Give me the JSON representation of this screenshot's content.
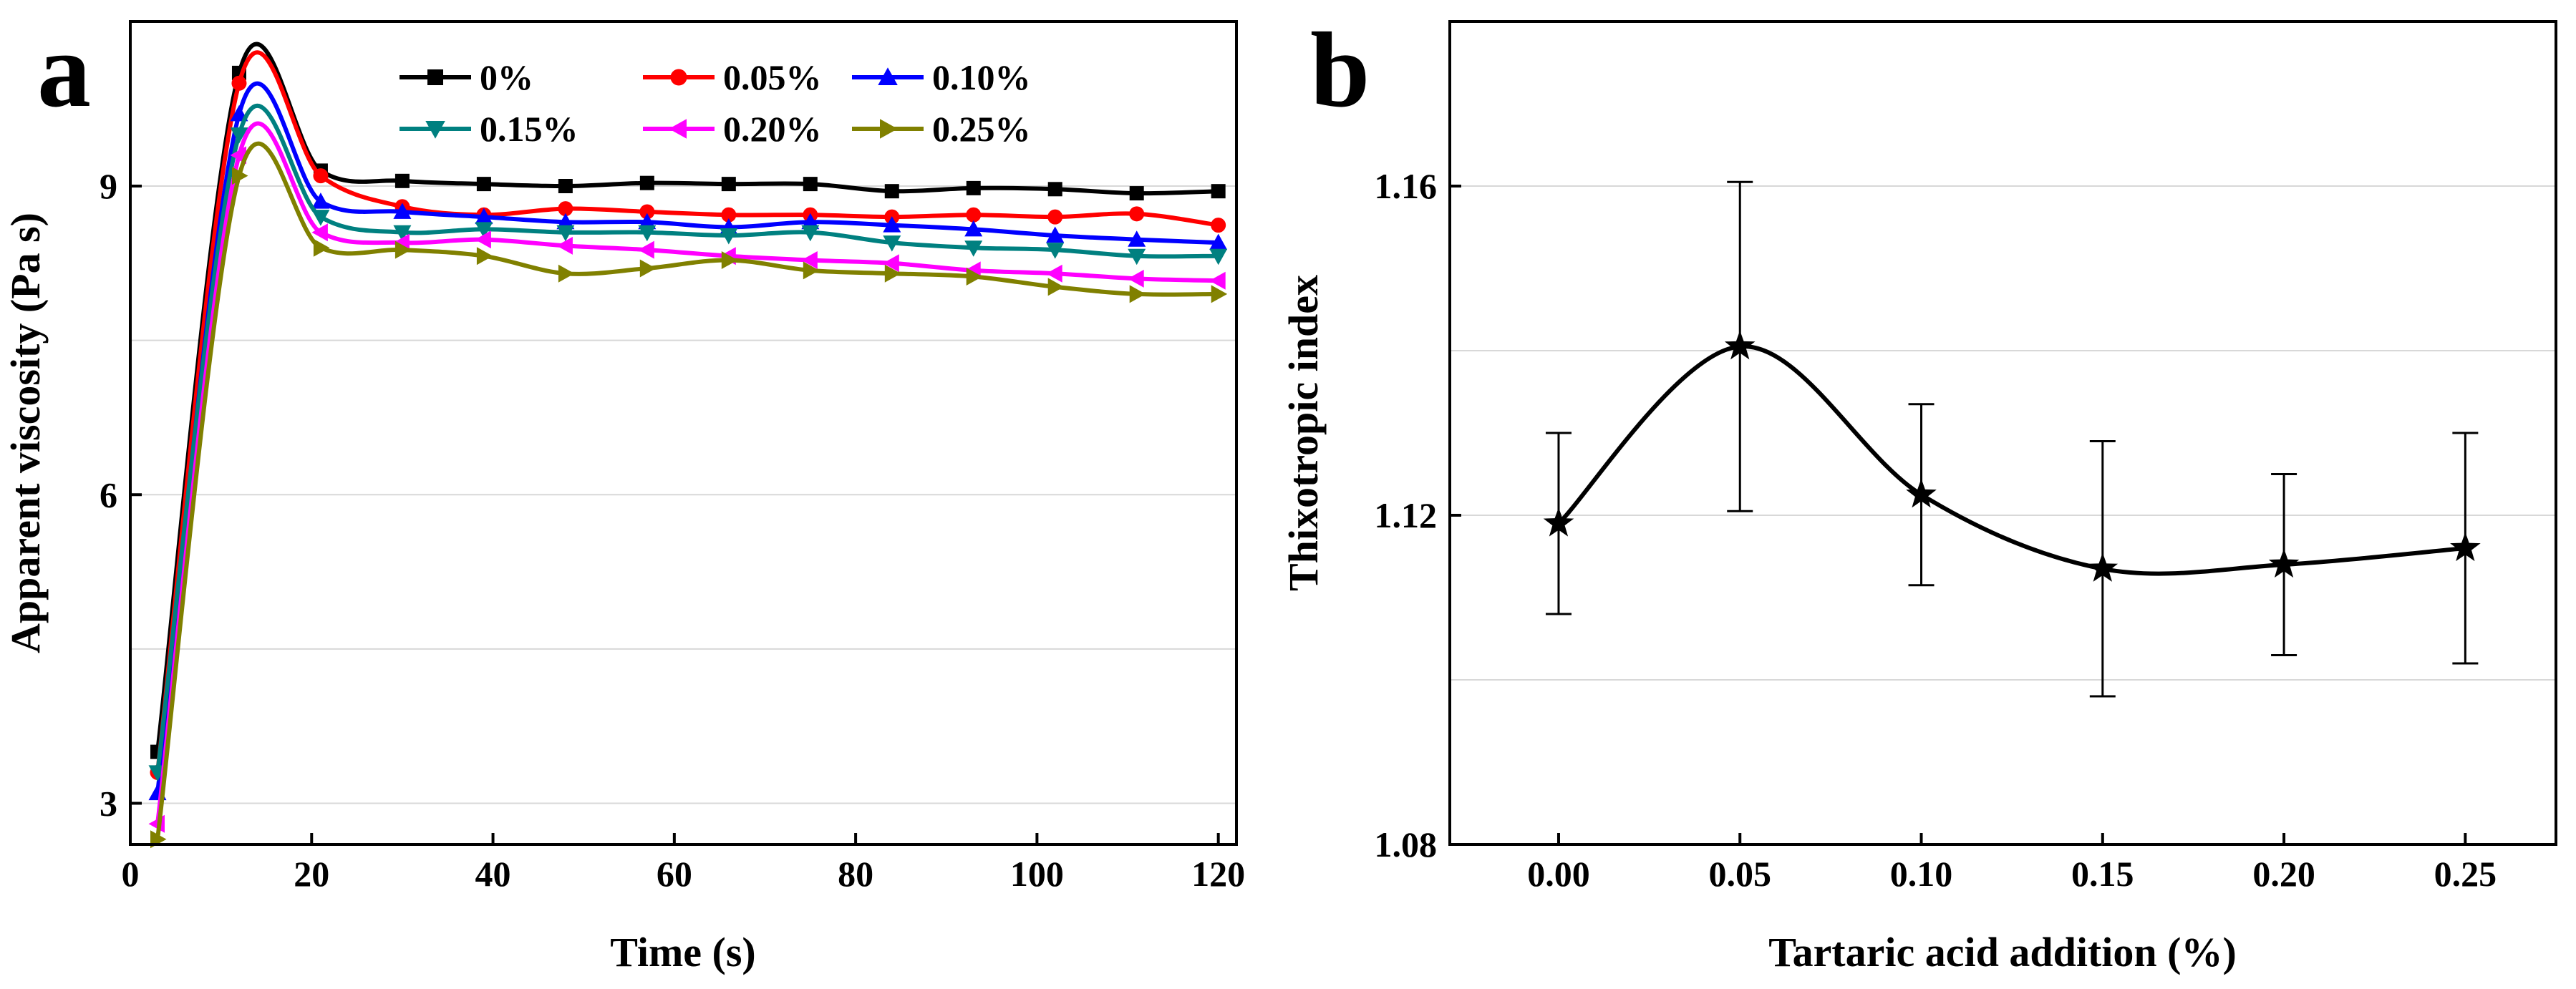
{
  "chart_data": [
    {
      "panel": "a",
      "type": "line",
      "xlabel": "Time (s)",
      "ylabel": "Apparent viscosity (Pa s)",
      "xlim": [
        0,
        122
      ],
      "ylim": [
        2.6,
        10.6
      ],
      "xticks": [
        0,
        20,
        40,
        60,
        80,
        100,
        120
      ],
      "yticks": [
        3,
        6,
        9
      ],
      "grid": "horizontal",
      "legend": "top",
      "x": [
        3,
        12,
        21,
        30,
        39,
        48,
        57,
        66,
        75,
        84,
        93,
        102,
        111,
        120
      ],
      "series": [
        {
          "name": "0%",
          "color": "#000000",
          "marker": "square",
          "values": [
            3.5,
            10.1,
            9.15,
            9.05,
            9.02,
            9.0,
            9.03,
            9.02,
            9.02,
            8.95,
            8.98,
            8.97,
            8.93,
            8.95
          ]
        },
        {
          "name": "0.05%",
          "color": "#ff0000",
          "marker": "circle",
          "values": [
            3.3,
            10.0,
            9.1,
            8.8,
            8.72,
            8.78,
            8.75,
            8.72,
            8.72,
            8.7,
            8.72,
            8.7,
            8.73,
            8.62
          ]
        },
        {
          "name": "0.10%",
          "color": "#0000ff",
          "marker": "triangle-up",
          "values": [
            3.1,
            9.7,
            8.85,
            8.75,
            8.7,
            8.65,
            8.65,
            8.6,
            8.65,
            8.62,
            8.58,
            8.52,
            8.48,
            8.45
          ]
        },
        {
          "name": "0.15%",
          "color": "#008080",
          "marker": "triangle-down",
          "values": [
            3.3,
            9.5,
            8.7,
            8.55,
            8.58,
            8.55,
            8.55,
            8.52,
            8.55,
            8.45,
            8.4,
            8.38,
            8.32,
            8.32
          ]
        },
        {
          "name": "0.20%",
          "color": "#ff00ff",
          "marker": "triangle-left",
          "values": [
            2.8,
            9.3,
            8.55,
            8.45,
            8.48,
            8.42,
            8.38,
            8.32,
            8.28,
            8.25,
            8.18,
            8.15,
            8.1,
            8.08
          ]
        },
        {
          "name": "0.25%",
          "color": "#808000",
          "marker": "triangle-right",
          "values": [
            2.65,
            9.1,
            8.4,
            8.38,
            8.32,
            8.15,
            8.2,
            8.28,
            8.18,
            8.15,
            8.12,
            8.02,
            7.95,
            7.95
          ]
        }
      ]
    },
    {
      "panel": "b",
      "type": "scatter",
      "xlabel": "Tartaric acid addition (%)",
      "ylabel": "Thixotropic index",
      "xlim": [
        -0.03,
        0.275
      ],
      "ylim": [
        1.08,
        1.18
      ],
      "xticks": [
        "0.00",
        "0.05",
        "0.10",
        "0.15",
        "0.20",
        "0.25"
      ],
      "yticks": [
        "1.08",
        "1.12",
        "1.16"
      ],
      "grid": "horizontal",
      "marker": "star",
      "x": [
        0.0,
        0.05,
        0.1,
        0.15,
        0.2,
        0.25
      ],
      "values": [
        1.119,
        1.1405,
        1.1225,
        1.1135,
        1.114,
        1.116
      ],
      "errors": [
        0.011,
        0.02,
        0.011,
        0.0155,
        0.011,
        0.014
      ]
    }
  ]
}
